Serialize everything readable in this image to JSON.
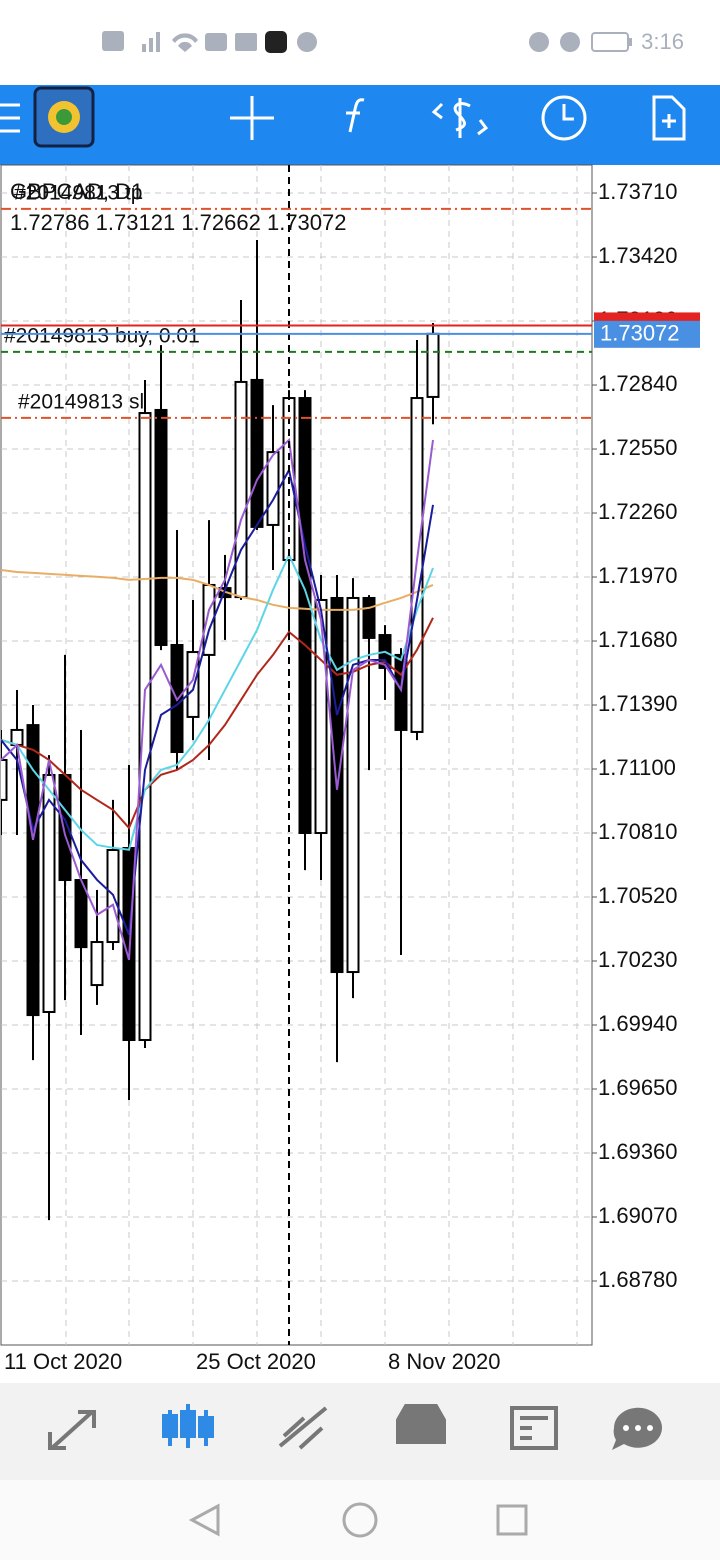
{
  "status_bar": {
    "time": "3:16"
  },
  "chart_data": {
    "type": "candlestick",
    "title": "GBPCAD, D1",
    "categories": [
      "11 Oct 2020",
      null,
      null,
      null,
      null,
      null,
      null,
      null,
      null,
      null,
      null,
      null,
      "25 Oct 2020",
      null,
      null,
      null,
      null,
      null,
      null,
      null,
      null,
      null,
      null,
      null,
      "8 Nov 2020",
      null,
      null,
      null
    ],
    "open": [
      1.7096,
      1.71209,
      1.71299,
      1.69999,
      1.71073,
      1.70597,
      1.70121,
      1.70316,
      1.70742,
      1.69872,
      1.72727,
      1.71662,
      1.71336,
      1.71617,
      1.7192,
      1.71879,
      1.72863,
      1.72206,
      1.72047,
      1.72781,
      1.7081,
      1.71875,
      1.7018,
      1.71875,
      1.71707,
      1.71617,
      1.71268,
      1.72786
    ],
    "high": [
      1.71277,
      1.71458,
      1.7139,
      1.71163,
      1.71617,
      1.71277,
      1.70552,
      1.7096,
      1.71118,
      1.72863,
      1.73021,
      1.72183,
      1.71866,
      1.72228,
      1.7207,
      1.73225,
      1.73497,
      1.72749,
      1.72817,
      1.72817,
      1.71979,
      1.71979,
      1.71965,
      1.71888,
      1.71752,
      1.71648,
      1.73044,
      1.73121
    ],
    "low": [
      1.70801,
      1.70801,
      1.69781,
      1.69056,
      1.70053,
      1.69895,
      1.70031,
      1.7028,
      1.696,
      1.69836,
      1.71639,
      1.71095,
      1.71231,
      1.71141,
      1.71685,
      1.71866,
      1.72183,
      1.72002,
      1.71685,
      1.70642,
      1.70597,
      1.69772,
      1.70062,
      1.71095,
      1.71413,
      1.70257,
      1.71231,
      1.72662
    ],
    "close": [
      1.71141,
      1.71277,
      1.69985,
      1.71073,
      1.70597,
      1.70293,
      1.70316,
      1.70733,
      1.69872,
      1.72713,
      1.71662,
      1.71177,
      1.7163,
      1.71934,
      1.71879,
      1.72854,
      1.72197,
      1.72536,
      1.72781,
      1.7081,
      1.71866,
      1.7018,
      1.71875,
      1.71694,
      1.71558,
      1.71277,
      1.72781,
      1.73072
    ],
    "series": [
      {
        "color": "#e9ad63",
        "values": [
          1.72002,
          1.71993,
          1.71989,
          1.71984,
          1.7198,
          1.71975,
          1.71971,
          1.71966,
          1.71957,
          1.71961,
          1.71966,
          1.71966,
          1.71957,
          1.71934,
          1.71903,
          1.7188,
          1.71866,
          1.71844,
          1.7183,
          1.71826,
          1.71821,
          1.71821,
          1.71821,
          1.7183,
          1.71853,
          1.71875,
          1.71903,
          1.71934
        ]
      },
      {
        "color": "#b0281a",
        "values": [
          1.71232,
          1.71209,
          1.71187,
          1.71141,
          1.71074,
          1.71006,
          1.7096,
          1.70915,
          1.70833,
          1.71006,
          1.71074,
          1.71096,
          1.71141,
          1.71209,
          1.713,
          1.71413,
          1.71527,
          1.71617,
          1.71721,
          1.71662,
          1.71594,
          1.71527,
          1.7154,
          1.71572,
          1.71585,
          1.71527,
          1.7164,
          1.71785
        ]
      },
      {
        "color": "#5cd6e6",
        "values": [
          1.71232,
          1.71209,
          1.71096,
          1.71006,
          1.70915,
          1.70824,
          1.70756,
          1.70743,
          1.70734,
          1.71006,
          1.71096,
          1.71119,
          1.71209,
          1.71323,
          1.71459,
          1.71594,
          1.7173,
          1.71912,
          1.7207,
          1.71912,
          1.71685,
          1.71549,
          1.71594,
          1.71617,
          1.71631,
          1.71594,
          1.71821,
          1.72011
        ]
      },
      {
        "color": "#1c1c9c",
        "values": [
          1.71232,
          1.71141,
          1.70824,
          1.7096,
          1.7087,
          1.70688,
          1.70598,
          1.7053,
          1.70349,
          1.71096,
          1.71345,
          1.71391,
          1.71459,
          1.7173,
          1.71912,
          1.72093,
          1.72206,
          1.72319,
          1.72455,
          1.72115,
          1.71821,
          1.71345,
          1.71572,
          1.71594,
          1.71594,
          1.71459,
          1.71866,
          1.72297
        ]
      },
      {
        "color": "#9a5ad2",
        "values": [
          1.71141,
          1.71209,
          1.70779,
          1.71141,
          1.70802,
          1.70598,
          1.70439,
          1.70485,
          1.70235,
          1.71459,
          1.71572,
          1.71413,
          1.71504,
          1.71821,
          1.71957,
          1.72229,
          1.7241,
          1.72523,
          1.72591,
          1.72047,
          1.71776,
          1.71006,
          1.71549,
          1.71594,
          1.71572,
          1.71459,
          1.72047,
          1.72591
        ]
      }
    ],
    "ylim": [
      1.6849,
      1.73837
    ],
    "yticks": [
      {
        "value": 1.7371,
        "label": "1.73710"
      },
      {
        "value": 1.7342,
        "label": "1.73420"
      },
      {
        "value": 1.7313,
        "label": "1.73130"
      },
      {
        "value": 1.7284,
        "label": "1.72840"
      },
      {
        "value": 1.7255,
        "label": "1.72550"
      },
      {
        "value": 1.7226,
        "label": "1.72260"
      },
      {
        "value": 1.7197,
        "label": "1.71970"
      },
      {
        "value": 1.7168,
        "label": "1.71680"
      },
      {
        "value": 1.7139,
        "label": "1.71390"
      },
      {
        "value": 1.711,
        "label": "1.71100"
      },
      {
        "value": 1.7081,
        "label": "1.70810"
      },
      {
        "value": 1.7052,
        "label": "1.70520"
      },
      {
        "value": 1.7023,
        "label": "1.70230"
      },
      {
        "value": 1.6994,
        "label": "1.69940"
      },
      {
        "value": 1.6965,
        "label": "1.69650"
      },
      {
        "value": 1.6936,
        "label": "1.69360"
      },
      {
        "value": 1.6907,
        "label": "1.69070"
      },
      {
        "value": 1.6878,
        "label": "1.68780"
      }
    ],
    "grid": true,
    "levels": [
      {
        "label": "#20149813 tp",
        "value": 1.73638,
        "color": "#e0522a",
        "style": "dashdot"
      },
      {
        "label": "#20149813 buy, 0.01",
        "value": 1.7299,
        "color": "#1f7a1f",
        "style": "dashed"
      },
      {
        "label": "#20149813 sl",
        "value": 1.72691,
        "color": "#e0522a",
        "style": "dashdot"
      }
    ],
    "ask": 1.7311,
    "ask_color": "#e32222",
    "bid": 1.73072,
    "bid_color": "#4a90e2"
  }
}
